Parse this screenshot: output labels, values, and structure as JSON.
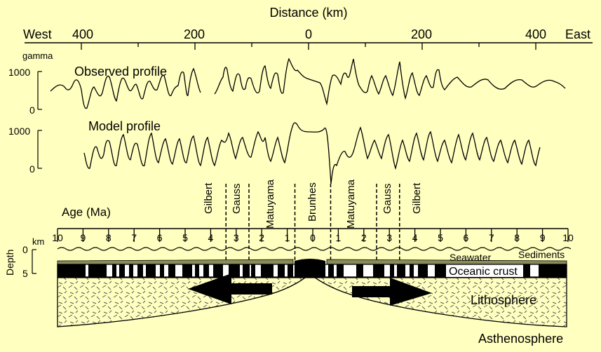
{
  "top_axis": {
    "title": "Distance (km)",
    "west": "West",
    "east": "East",
    "ticks": [
      "400",
      "200",
      "0",
      "200",
      "400"
    ]
  },
  "profiles": {
    "unit": "gamma",
    "observed_label": "Observed profile",
    "model_label": "Model profile",
    "y_max_label": "1000",
    "y_min_label": "0"
  },
  "epochs": {
    "west": [
      "Gilbert",
      "Gauss",
      "Matuyama"
    ],
    "center": "Brunhes",
    "east": [
      "Matuyama",
      "Gauss",
      "Gilbert"
    ]
  },
  "age_axis": {
    "title": "Age (Ma)",
    "ticks": [
      "10",
      "9",
      "8",
      "7",
      "6",
      "5",
      "4",
      "3",
      "2",
      "1",
      "0",
      "1",
      "2",
      "3",
      "4",
      "5",
      "6",
      "7",
      "8",
      "9",
      "10"
    ]
  },
  "depth_axis": {
    "title": "Depth",
    "unit": "km",
    "ticks": [
      "0",
      "5"
    ]
  },
  "layers": {
    "seawater": "Seawater",
    "sediments": "Sediments",
    "crust": "Oceanic crust",
    "lithosphere": "Lithosphere",
    "asthenosphere": "Asthenosphere"
  },
  "colors": {
    "background": "#ffffc0",
    "ink": "#000000",
    "sediment": "#8a8a5a",
    "hatch": "#555555"
  }
}
